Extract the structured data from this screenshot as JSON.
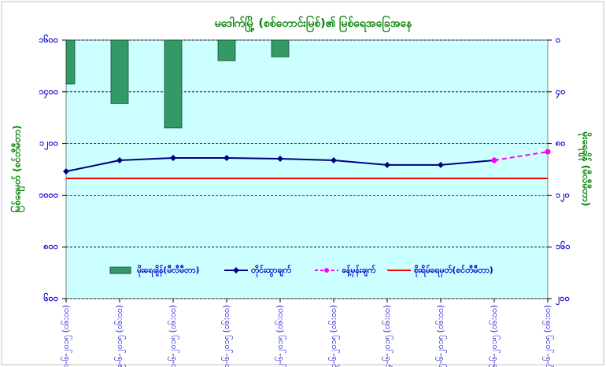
{
  "chart_data": {
    "type": "combo",
    "title": "မဒေါက်မြို့ (စစ်တောင်းမြစ်)၏ မြစ်ရေအခြေအနေ",
    "ylabel": "မြစ်ရေမှတ် (စင်တီမီတာ)",
    "y2label": "မိုးရေချိန် (မီလီမီတာ)",
    "categories": [
      "၁၈-၆-၂၀၁၅ (၀၆:၀၀)",
      "၁၉-၆-၂၀၁၅ (၀၆:၀၀)",
      "၂၀-၆-၂၀၁၅ (၀၆:၀၀)",
      "၂၁-၆-၂၀၁၅ (၀၆:၀၀)",
      "၂၂-၆-၂၀၁၅ (၀၆:၀၀)",
      "၂၃-၆-၂၀၁၅ (၀၆:၀၀)",
      "၂၄-၆-၂၀၁၅ (၀၆:၀၀)",
      "၂၅-၆-၂၀၁၅ (၀၆:၀၀)",
      "၂၆-၆-၂၀၁၅ (၀၆:၀၀)",
      "၂၇-၆-၂၀၁၅ (၀၆:၀၀)"
    ],
    "ylim": [
      600,
      1600
    ],
    "yticks": [
      {
        "value": 600,
        "label": "၆၀၀"
      },
      {
        "value": 800,
        "label": "၈၀၀"
      },
      {
        "value": 1000,
        "label": "၁၀၀၀"
      },
      {
        "value": 1200,
        "label": "၁၂၀၀"
      },
      {
        "value": 1400,
        "label": "၁၄၀၀"
      },
      {
        "value": 1600,
        "label": "၁၆၀၀"
      }
    ],
    "y2lim": [
      200,
      0
    ],
    "y2ticks": [
      {
        "value": 200,
        "label": "၂၀၀"
      },
      {
        "value": 160,
        "label": "၁၆၀"
      },
      {
        "value": 120,
        "label": "၁၂၀"
      },
      {
        "value": 80,
        "label": "၈၀"
      },
      {
        "value": 40,
        "label": "၄၀"
      },
      {
        "value": 0,
        "label": "၀"
      }
    ],
    "grid": true,
    "background": "#ccffff",
    "series": [
      {
        "name": "မိုးရေချိန်(မီလီမီတာ)",
        "type": "bar",
        "axis": "y2",
        "color": "#339966",
        "values": [
          34,
          49,
          68,
          16,
          13,
          null,
          null,
          null,
          null,
          null
        ]
      },
      {
        "name": "တိုင်းထွာချက်",
        "type": "line",
        "marker": "diamond",
        "color": "#000080",
        "values": [
          1092,
          1135,
          1144,
          1144,
          1141,
          1135,
          1117,
          1117,
          1135,
          null
        ]
      },
      {
        "name": "ခန့်မှန်းချက်",
        "type": "line",
        "marker": "circle",
        "dashed": true,
        "color": "#ff00ff",
        "values": [
          null,
          null,
          null,
          null,
          null,
          null,
          null,
          null,
          1135,
          1168
        ]
      },
      {
        "name": "စိုးရိမ်ရေမှတ်(စင်တီမီတာ)",
        "type": "line",
        "marker": "none",
        "color": "#ff0000",
        "values": [
          1065,
          1065,
          1065,
          1065,
          1065,
          1065,
          1065,
          1065,
          1065,
          1065
        ]
      }
    ]
  }
}
